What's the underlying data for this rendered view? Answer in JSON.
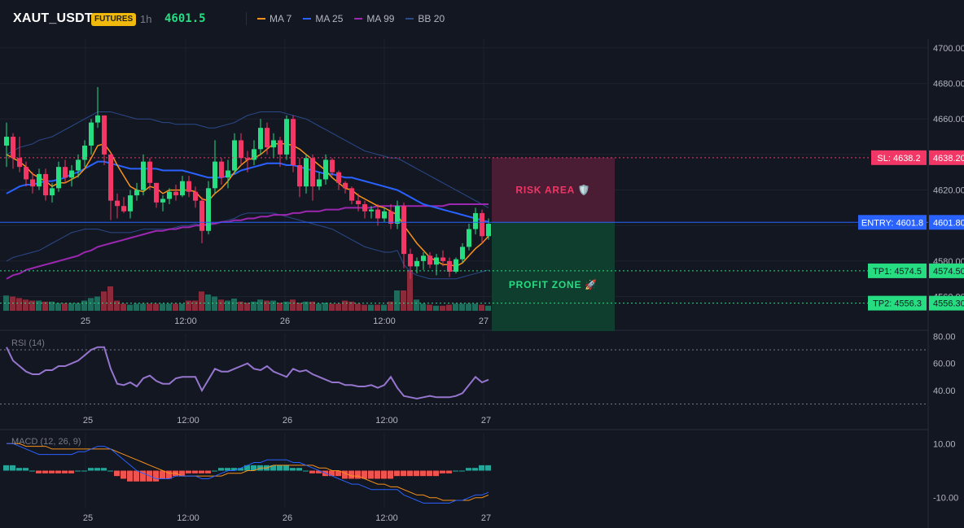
{
  "header": {
    "symbol": "XAUT_USDT",
    "badge": "FUTURES",
    "timeframe": "1h",
    "last_price": "4601.5",
    "legend": [
      {
        "label": "MA 7",
        "color": "#f7931a"
      },
      {
        "label": "MA 25",
        "color": "#2962ff"
      },
      {
        "label": "MA 99",
        "color": "#9c27b0"
      },
      {
        "label": "BB 20",
        "color": "#2a4a8a"
      }
    ]
  },
  "colors": {
    "up": "#26de81",
    "down": "#f23665",
    "vol_up": "#1f6b5c",
    "vol_down": "#8a2a3a",
    "rsi": "#9575cd",
    "macd": "#2962ff",
    "signal": "#f7931a",
    "hist_pos": "#26a69a",
    "hist_neg": "#ef5350"
  },
  "time_labels": [
    "25",
    "12:00",
    "26",
    "12:00",
    "27"
  ],
  "price_axis": [
    "4700.00",
    "4680.00",
    "4660.00",
    "4640.00",
    "4620.00",
    "4600.00",
    "4580.00",
    "4560.00"
  ],
  "levels": {
    "sl": {
      "value": 4638.2,
      "tag": "SL: 4638.2",
      "price": "4638.20"
    },
    "entry": {
      "value": 4601.8,
      "tag": "ENTRY: 4601.8",
      "price": "4601.80"
    },
    "tp1": {
      "value": 4574.5,
      "tag": "TP1: 4574.5",
      "price": "4574.50"
    },
    "tp2": {
      "value": 4556.3,
      "tag": "TP2: 4556.3",
      "price": "4556.30"
    }
  },
  "zones": {
    "risk": "RISK AREA 🛡️",
    "profit": "PROFIT ZONE 🚀"
  },
  "rsi": {
    "title": "RSI (14)",
    "axis": [
      "80.00",
      "60.00",
      "40.00"
    ],
    "upper": 70,
    "lower": 30
  },
  "macd": {
    "title": "MACD (12, 26, 9)",
    "axis": [
      "10.00",
      "-10.00"
    ]
  },
  "chart_data": [
    {
      "type": "candlestick",
      "title": "XAUT_USDT 1h",
      "ylim": [
        4552,
        4705
      ],
      "x_ticks": [
        "25",
        "12:00",
        "26",
        "12:00",
        "27"
      ],
      "candles": [
        [
          4645,
          4658,
          4633,
          4650
        ],
        [
          4650,
          4652,
          4632,
          4638
        ],
        [
          4638,
          4650,
          4630,
          4633
        ],
        [
          4633,
          4636,
          4622,
          4626
        ],
        [
          4626,
          4630,
          4618,
          4622
        ],
        [
          4622,
          4632,
          4620,
          4629
        ],
        [
          4629,
          4632,
          4614,
          4617
        ],
        [
          4617,
          4624,
          4613,
          4621
        ],
        [
          4621,
          4636,
          4619,
          4633
        ],
        [
          4633,
          4637,
          4624,
          4627
        ],
        [
          4627,
          4634,
          4622,
          4631
        ],
        [
          4631,
          4640,
          4627,
          4637
        ],
        [
          4637,
          4648,
          4633,
          4645
        ],
        [
          4645,
          4660,
          4640,
          4658
        ],
        [
          4658,
          4678,
          4655,
          4662
        ],
        [
          4662,
          4662,
          4634,
          4640
        ],
        [
          4640,
          4641,
          4603,
          4614
        ],
        [
          4614,
          4618,
          4604,
          4611
        ],
        [
          4611,
          4616,
          4607,
          4608
        ],
        [
          4608,
          4620,
          4604,
          4617
        ],
        [
          4617,
          4624,
          4614,
          4620
        ],
        [
          4620,
          4640,
          4617,
          4636
        ],
        [
          4636,
          4638,
          4620,
          4624
        ],
        [
          4624,
          4624,
          4610,
          4613
        ],
        [
          4613,
          4617,
          4608,
          4615
        ],
        [
          4615,
          4621,
          4612,
          4619
        ],
        [
          4619,
          4623,
          4614,
          4617
        ],
        [
          4617,
          4628,
          4616,
          4625
        ],
        [
          4625,
          4628,
          4616,
          4619
        ],
        [
          4619,
          4622,
          4610,
          4614
        ],
        [
          4614,
          4616,
          4590,
          4597
        ],
        [
          4597,
          4625,
          4595,
          4621
        ],
        [
          4621,
          4648,
          4618,
          4636
        ],
        [
          4636,
          4638,
          4623,
          4627
        ],
        [
          4627,
          4637,
          4621,
          4631
        ],
        [
          4631,
          4652,
          4629,
          4648
        ],
        [
          4648,
          4652,
          4634,
          4638
        ],
        [
          4638,
          4642,
          4630,
          4637
        ],
        [
          4637,
          4648,
          4634,
          4643
        ],
        [
          4643,
          4660,
          4640,
          4655
        ],
        [
          4655,
          4658,
          4640,
          4644
        ],
        [
          4644,
          4652,
          4638,
          4648
        ],
        [
          4648,
          4650,
          4633,
          4640
        ],
        [
          4640,
          4662,
          4637,
          4660
        ],
        [
          4660,
          4662,
          4630,
          4634
        ],
        [
          4634,
          4638,
          4616,
          4622
        ],
        [
          4622,
          4640,
          4618,
          4638
        ],
        [
          4638,
          4640,
          4614,
          4622
        ],
        [
          4622,
          4630,
          4620,
          4626
        ],
        [
          4626,
          4640,
          4623,
          4637
        ],
        [
          4637,
          4638,
          4628,
          4630
        ],
        [
          4630,
          4631,
          4620,
          4624
        ],
        [
          4624,
          4625,
          4618,
          4621
        ],
        [
          4621,
          4622,
          4612,
          4614
        ],
        [
          4614,
          4618,
          4608,
          4612
        ],
        [
          4612,
          4614,
          4604,
          4608
        ],
        [
          4608,
          4611,
          4604,
          4609
        ],
        [
          4609,
          4612,
          4600,
          4604
        ],
        [
          4604,
          4610,
          4602,
          4608
        ],
        [
          4608,
          4612,
          4598,
          4601
        ],
        [
          4601,
          4614,
          4598,
          4611
        ],
        [
          4611,
          4613,
          4576,
          4584
        ],
        [
          4584,
          4587,
          4570,
          4577
        ],
        [
          4577,
          4582,
          4573,
          4580
        ],
        [
          4580,
          4585,
          4575,
          4583
        ],
        [
          4583,
          4585,
          4576,
          4578
        ],
        [
          4578,
          4584,
          4572,
          4582
        ],
        [
          4582,
          4586,
          4577,
          4580
        ],
        [
          4580,
          4582,
          4571,
          4574
        ],
        [
          4574,
          4582,
          4573,
          4581
        ],
        [
          4581,
          4590,
          4579,
          4588
        ],
        [
          4588,
          4601,
          4586,
          4598
        ],
        [
          4598,
          4610,
          4595,
          4607
        ],
        [
          4607,
          4609,
          4590,
          4594
        ],
        [
          4594,
          4604,
          4592,
          4601
        ]
      ],
      "volume": [
        30,
        28,
        25,
        22,
        20,
        20,
        18,
        18,
        15,
        15,
        15,
        15,
        20,
        25,
        28,
        38,
        48,
        20,
        14,
        12,
        14,
        14,
        14,
        14,
        14,
        14,
        14,
        14,
        20,
        20,
        38,
        32,
        28,
        22,
        20,
        24,
        18,
        16,
        18,
        22,
        20,
        20,
        16,
        18,
        22,
        16,
        18,
        18,
        14,
        16,
        14,
        14,
        20,
        18,
        14,
        12,
        12,
        12,
        12,
        18,
        40,
        40,
        80,
        22,
        14,
        12,
        10,
        10,
        12,
        14,
        14,
        14,
        14,
        12,
        10
      ],
      "ma7": [
        4640,
        4638,
        4636,
        4633,
        4629,
        4627,
        4625,
        4622,
        4624,
        4624,
        4626,
        4628,
        4632,
        4638,
        4645,
        4646,
        4641,
        4634,
        4628,
        4622,
        4620,
        4619,
        4622,
        4621,
        4618,
        4620,
        4620,
        4620,
        4620,
        4619,
        4615,
        4614,
        4618,
        4621,
        4625,
        4630,
        4634,
        4637,
        4638,
        4640,
        4643,
        4646,
        4646,
        4646,
        4645,
        4643,
        4640,
        4637,
        4634,
        4631,
        4627,
        4624,
        4621,
        4620,
        4617,
        4615,
        4613,
        4611,
        4610,
        4608,
        4606,
        4600,
        4595,
        4590,
        4586,
        4582,
        4580,
        4578,
        4578,
        4577,
        4579,
        4583,
        4587,
        4590,
        4594
      ],
      "ma25": [
        4618,
        4620,
        4622,
        4623,
        4623,
        4624,
        4625,
        4625,
        4626,
        4627,
        4629,
        4630,
        4632,
        4634,
        4636,
        4636,
        4635,
        4634,
        4633,
        4632,
        4632,
        4632,
        4632,
        4632,
        4631,
        4631,
        4631,
        4631,
        4630,
        4629,
        4628,
        4627,
        4627,
        4627,
        4628,
        4629,
        4631,
        4632,
        4633,
        4634,
        4635,
        4635,
        4635,
        4634,
        4634,
        4633,
        4632,
        4631,
        4630,
        4629,
        4629,
        4628,
        4627,
        4627,
        4626,
        4625,
        4624,
        4623,
        4622,
        4621,
        4620,
        4618,
        4616,
        4614,
        4612,
        4611,
        4610,
        4609,
        4608,
        4607,
        4606,
        4605,
        4604,
        4603,
        4602
      ],
      "ma99": [
        4570,
        4572,
        4573,
        4575,
        4576,
        4577,
        4578,
        4579,
        4580,
        4581,
        4582,
        4583,
        4585,
        4586,
        4588,
        4589,
        4590,
        4591,
        4592,
        4593,
        4594,
        4595,
        4596,
        4597,
        4597,
        4598,
        4598,
        4599,
        4599,
        4600,
        4600,
        4601,
        4601,
        4602,
        4602,
        4603,
        4603,
        4604,
        4604,
        4605,
        4605,
        4606,
        4606,
        4606,
        4607,
        4607,
        4608,
        4608,
        4608,
        4609,
        4609,
        4609,
        4610,
        4610,
        4610,
        4610,
        4610,
        4611,
        4611,
        4611,
        4611,
        4611,
        4611,
        4611,
        4611,
        4611,
        4611,
        4611,
        4612,
        4612,
        4612,
        4612,
        4612,
        4612,
        4612
      ],
      "bb_upper": [
        4640,
        4642,
        4644,
        4645,
        4646,
        4648,
        4649,
        4650,
        4652,
        4654,
        4656,
        4658,
        4660,
        4662,
        4664,
        4664,
        4664,
        4663,
        4662,
        4661,
        4660,
        4660,
        4660,
        4659,
        4658,
        4658,
        4657,
        4657,
        4657,
        4657,
        4656,
        4655,
        4655,
        4656,
        4657,
        4658,
        4660,
        4662,
        4663,
        4664,
        4664,
        4664,
        4664,
        4663,
        4662,
        4661,
        4660,
        4658,
        4656,
        4654,
        4652,
        4650,
        4648,
        4646,
        4644,
        4642,
        4641,
        4640,
        4639,
        4638,
        4638,
        4636,
        4634,
        4632,
        4630,
        4628,
        4626,
        4624,
        4622,
        4620,
        4618,
        4616,
        4614,
        4612,
        4610
      ],
      "bb_lower": [
        4580,
        4582,
        4583,
        4584,
        4585,
        4586,
        4588,
        4590,
        4592,
        4594,
        4596,
        4597,
        4598,
        4598,
        4598,
        4597,
        4596,
        4596,
        4596,
        4596,
        4597,
        4598,
        4598,
        4598,
        4598,
        4598,
        4599,
        4600,
        4600,
        4601,
        4600,
        4600,
        4601,
        4602,
        4603,
        4604,
        4606,
        4607,
        4607,
        4607,
        4607,
        4607,
        4606,
        4605,
        4604,
        4603,
        4602,
        4601,
        4600,
        4599,
        4598,
        4596,
        4594,
        4592,
        4590,
        4588,
        4587,
        4586,
        4585,
        4585,
        4586,
        4578,
        4574,
        4572,
        4571,
        4570,
        4570,
        4570,
        4570,
        4570,
        4571,
        4572,
        4573,
        4574,
        4575
      ],
      "levels": {
        "sl": 4638.2,
        "entry": 4601.8,
        "tp1": 4574.5,
        "tp2": 4556.3
      }
    },
    {
      "type": "line",
      "title": "RSI (14)",
      "ylim": [
        25,
        82
      ],
      "values": [
        72,
        62,
        58,
        54,
        52,
        52,
        55,
        55,
        58,
        58,
        60,
        62,
        66,
        70,
        72,
        72,
        56,
        45,
        44,
        46,
        43,
        49,
        51,
        47,
        45,
        45,
        49,
        50,
        50,
        50,
        40,
        48,
        56,
        54,
        54,
        56,
        58,
        60,
        56,
        55,
        58,
        54,
        52,
        50,
        56,
        54,
        55,
        52,
        50,
        48,
        46,
        46,
        44,
        44,
        43,
        43,
        44,
        42,
        44,
        50,
        42,
        36,
        35,
        34,
        35,
        36,
        35,
        35,
        35,
        36,
        38,
        44,
        50,
        46,
        48
      ]
    },
    {
      "type": "bar",
      "title": "MACD (12, 26, 9)",
      "ylim": [
        -14,
        14
      ],
      "macd": [
        10,
        10,
        9,
        8,
        7,
        6,
        6,
        6,
        6,
        6,
        6,
        7,
        7,
        8,
        9,
        9,
        8,
        6,
        4,
        2,
        0,
        -1,
        -2,
        -3,
        -3,
        -3,
        -2,
        -2,
        -2,
        -2,
        -3,
        -3,
        -2,
        -1,
        0,
        0,
        1,
        2,
        3,
        3,
        4,
        4,
        4,
        4,
        3,
        3,
        2,
        1,
        0,
        -1,
        -2,
        -3,
        -4,
        -5,
        -5,
        -6,
        -7,
        -7,
        -7,
        -7,
        -7,
        -9,
        -10,
        -11,
        -12,
        -12,
        -12,
        -12,
        -12,
        -11,
        -11,
        -10,
        -9,
        -9,
        -8
      ],
      "signal": [
        10,
        10,
        10,
        9,
        9,
        9,
        9,
        8,
        8,
        8,
        8,
        8,
        8,
        8,
        8,
        8,
        8,
        7,
        6,
        5,
        4,
        3,
        2,
        1,
        0,
        -1,
        -1,
        -2,
        -2,
        -2,
        -2,
        -2,
        -2,
        -2,
        -1,
        -1,
        -1,
        0,
        0,
        1,
        1,
        2,
        2,
        2,
        2,
        2,
        2,
        2,
        1,
        1,
        0,
        0,
        -1,
        -2,
        -2,
        -3,
        -4,
        -5,
        -5,
        -6,
        -6,
        -7,
        -8,
        -9,
        -9,
        -10,
        -10,
        -11,
        -11,
        -11,
        -11,
        -11,
        -10,
        -10,
        -9
      ],
      "histogram": [
        2,
        2,
        1,
        1,
        0,
        -1,
        -1,
        -1,
        -1,
        -1,
        -1,
        0,
        0,
        1,
        1,
        1,
        0,
        -2,
        -3,
        -4,
        -4,
        -4,
        -4,
        -4,
        -3,
        -3,
        -2,
        -2,
        -1,
        -1,
        -1,
        -1,
        0,
        1,
        1,
        1,
        1,
        2,
        2,
        2,
        2,
        2,
        2,
        2,
        1,
        1,
        0,
        -1,
        -1,
        -2,
        -2,
        -2,
        -3,
        -3,
        -3,
        -3,
        -3,
        -3,
        -3,
        -3,
        -2,
        -2,
        -2,
        -2,
        -2,
        -2,
        -2,
        -1,
        -1,
        0,
        0,
        1,
        1,
        2,
        2
      ]
    }
  ]
}
